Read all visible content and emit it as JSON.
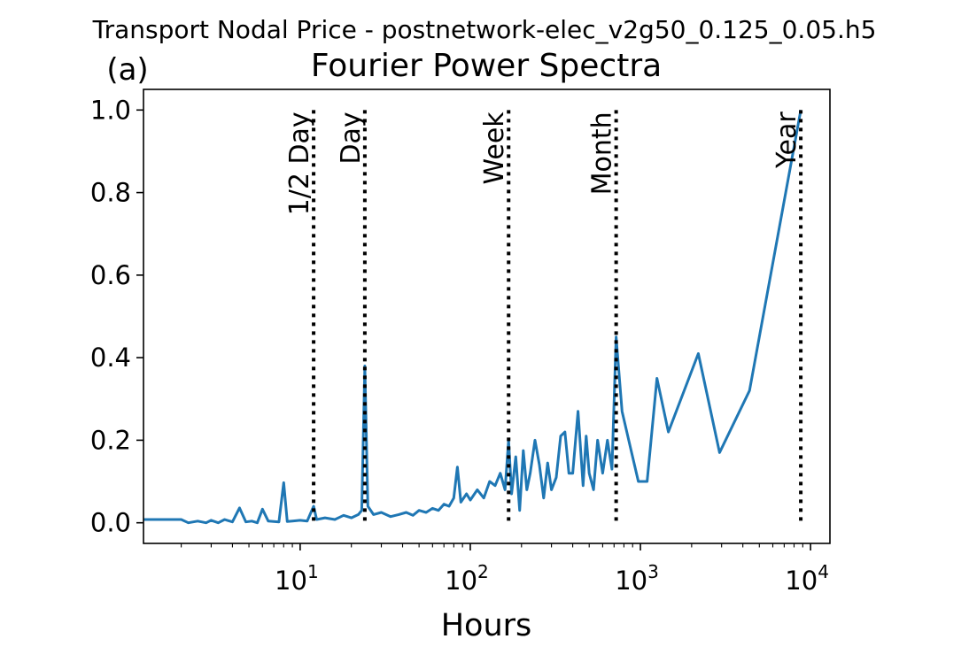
{
  "suptitle": "Transport Nodal Price - postnetwork-elec_v2g50_0.125_0.05.h5",
  "panel_label": "(a)",
  "chart_data": {
    "type": "line",
    "title": "Fourier Power Spectra",
    "xlabel": "Hours",
    "ylabel": "",
    "xscale": "log",
    "xlim": [
      1.2,
      13000
    ],
    "ylim": [
      -0.05,
      1.05
    ],
    "grid": false,
    "line_color": "#1f77b4",
    "x_ticks": [
      {
        "value": 10,
        "base": "10",
        "exp": "1"
      },
      {
        "value": 100,
        "base": "10",
        "exp": "2"
      },
      {
        "value": 1000,
        "base": "10",
        "exp": "3"
      },
      {
        "value": 10000,
        "base": "10",
        "exp": "4"
      }
    ],
    "y_ticks": [
      {
        "value": 0.0,
        "label": "0.0"
      },
      {
        "value": 0.2,
        "label": "0.2"
      },
      {
        "value": 0.4,
        "label": "0.4"
      },
      {
        "value": 0.6,
        "label": "0.6"
      },
      {
        "value": 0.8,
        "label": "0.8"
      },
      {
        "value": 1.0,
        "label": "1.0"
      }
    ],
    "vlines": [
      {
        "x": 12,
        "label": "1/2 Day"
      },
      {
        "x": 24,
        "label": "Day"
      },
      {
        "x": 168,
        "label": "Week"
      },
      {
        "x": 720,
        "label": "Month"
      },
      {
        "x": 8760,
        "label": "Year"
      }
    ],
    "series": [
      {
        "x": [
          1.2,
          2.0,
          2.2,
          2.5,
          2.8,
          3.0,
          3.3,
          3.6,
          4.0,
          4.4,
          4.8,
          5.2,
          5.6,
          6.0,
          6.5,
          7.0,
          7.5,
          8.0,
          8.4,
          9.0,
          10.0,
          11.0,
          12.0,
          12.5,
          14.0,
          16.0,
          18.0,
          20.0,
          22.0,
          23.0,
          24.0,
          25.0,
          27.0,
          30.0,
          34.0,
          38.0,
          42.0,
          46.0,
          50.0,
          55.0,
          60.0,
          65.0,
          70.0,
          75.0,
          80.0,
          84.0,
          88.0,
          95.0,
          100.0,
          110.0,
          120.0,
          130.0,
          140.0,
          150.0,
          160.0,
          168.0,
          175.0,
          185.0,
          195.0,
          205.0,
          215.0,
          225.0,
          240.0,
          255.0,
          270.0,
          285.0,
          300.0,
          320.0,
          340.0,
          360.0,
          380.0,
          400.0,
          430.0,
          460.0,
          480.0,
          500.0,
          530.0,
          560.0,
          600.0,
          640.0,
          680.0,
          720.0,
          780.0,
          876.0,
          973.0,
          1095.0,
          1251.0,
          1460.0,
          2190.0,
          2920.0,
          4380.0,
          8760.0
        ],
        "y": [
          0.008,
          0.008,
          0.0,
          0.004,
          0.0,
          0.006,
          0.0,
          0.008,
          0.002,
          0.036,
          0.002,
          0.004,
          0.0,
          0.033,
          0.004,
          0.003,
          0.002,
          0.097,
          0.003,
          0.004,
          0.006,
          0.004,
          0.04,
          0.008,
          0.012,
          0.008,
          0.018,
          0.012,
          0.02,
          0.03,
          0.38,
          0.04,
          0.02,
          0.025,
          0.015,
          0.02,
          0.025,
          0.018,
          0.03,
          0.025,
          0.035,
          0.03,
          0.045,
          0.04,
          0.06,
          0.135,
          0.05,
          0.07,
          0.055,
          0.08,
          0.06,
          0.1,
          0.09,
          0.12,
          0.08,
          0.2,
          0.07,
          0.16,
          0.03,
          0.175,
          0.08,
          0.12,
          0.2,
          0.14,
          0.06,
          0.145,
          0.08,
          0.11,
          0.21,
          0.22,
          0.12,
          0.12,
          0.27,
          0.09,
          0.21,
          0.12,
          0.08,
          0.2,
          0.12,
          0.2,
          0.13,
          0.45,
          0.27,
          0.18,
          0.1,
          0.1,
          0.35,
          0.22,
          0.41,
          0.17,
          0.32,
          1.0
        ]
      }
    ]
  }
}
